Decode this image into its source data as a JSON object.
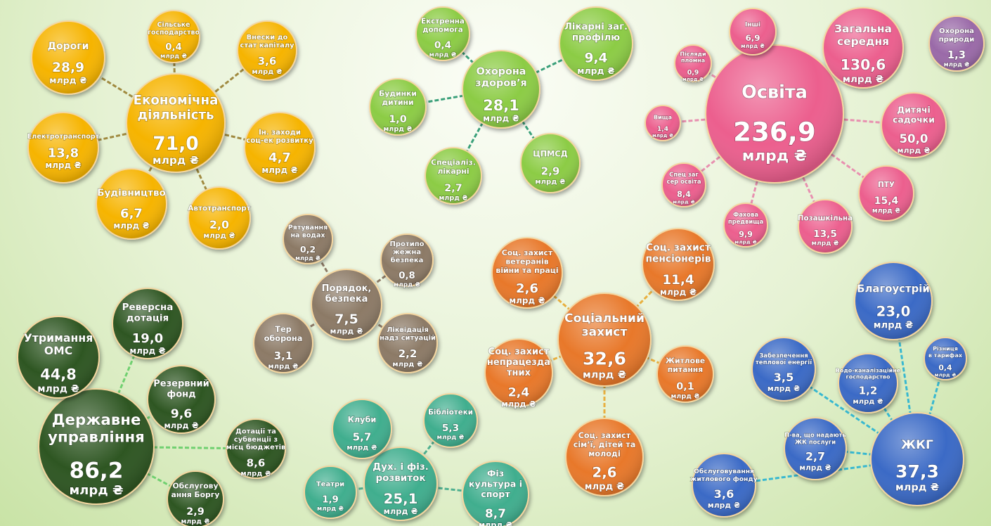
{
  "unit": "млрд ₴",
  "clusters": [
    {
      "id": "economy",
      "color": "#f6b400",
      "edge": "#a08a40",
      "center": {
        "label": "Економічна\nдіяльність",
        "value": "71,0"
      },
      "children": [
        {
          "label": "Дороги",
          "value": "28,9"
        },
        {
          "label": "Сільське\nгосподарство",
          "value": "0,4"
        },
        {
          "label": "Внески до\nстат капіталу",
          "value": "3,6"
        },
        {
          "label": "Ін. заходи\nсоц-ек розвитку",
          "value": "4,7"
        },
        {
          "label": "Автотранспорт",
          "value": "2,0"
        },
        {
          "label": "Будівництво",
          "value": "6,7"
        },
        {
          "label": "Електротранспорт",
          "value": "13,8"
        }
      ]
    },
    {
      "id": "health",
      "color": "#8ccc45",
      "edge": "#3aa07a",
      "center": {
        "label": "Охорона\nздоров’я",
        "value": "28,1"
      },
      "children": [
        {
          "label": "Екстренна\nдопомога",
          "value": "0,4"
        },
        {
          "label": "Лікарні заг.\nпрофілю",
          "value": "9,4"
        },
        {
          "label": "Будинки\nдитини",
          "value": "1,0"
        },
        {
          "label": "Спеціаліз.\nлікарні",
          "value": "2,7"
        },
        {
          "label": "ЦПМСД",
          "value": "2,9"
        }
      ]
    },
    {
      "id": "education",
      "color": "#ec5e8e",
      "edge": "#e890b0",
      "center": {
        "label": "Освіта",
        "value": "236,9"
      },
      "children": [
        {
          "label": "Інші",
          "value": "6,9"
        },
        {
          "label": "Загальна\nсередня",
          "value": "130,6"
        },
        {
          "label": "Післяди\nпломна",
          "value": "0,9"
        },
        {
          "label": "Вища",
          "value": "1,4"
        },
        {
          "label": "Дитячі\nсадочки",
          "value": "50,0"
        },
        {
          "label": "Спец заг\nсер освіта",
          "value": "8,4"
        },
        {
          "label": "ПТУ",
          "value": "15,4"
        },
        {
          "label": "Фахова\nпредвища",
          "value": "9,9"
        },
        {
          "label": "Позашкільна",
          "value": "13,5"
        }
      ]
    },
    {
      "id": "nature",
      "color": "#9a6aa8",
      "edge": "#9a6aa8",
      "center": {
        "label": "Охорона\nприроди",
        "value": "1,3"
      },
      "children": []
    },
    {
      "id": "order",
      "color": "#8c7a66",
      "edge": "#8c7a66",
      "center": {
        "label": "Порядок,\nбезпека",
        "value": "7,5"
      },
      "children": [
        {
          "label": "Рятування\nна водах",
          "value": "0,2"
        },
        {
          "label": "Протипо\nжежна\nбезпека",
          "value": "0,8"
        },
        {
          "label": "Тер\nоборона",
          "value": "3,1"
        },
        {
          "label": "Ліквідація\nнадз ситуацій",
          "value": "2,2"
        }
      ]
    },
    {
      "id": "social",
      "color": "#e8782a",
      "edge": "#e8b040",
      "center": {
        "label": "Соціальний\nзахист",
        "value": "32,6"
      },
      "children": [
        {
          "label": "Соц. захист\nветеранів\nвійни та праці",
          "value": "2,6"
        },
        {
          "label": "Соц. захист\nпенсіонерів",
          "value": "11,4"
        },
        {
          "label": "Соц. захист\nнепрацезда\nтних",
          "value": "2,4"
        },
        {
          "label": "Житлове\nпитання",
          "value": "0,1"
        },
        {
          "label": "Соц. захист\nсім’ї, дітей та\nмолоді",
          "value": "2,6"
        }
      ]
    },
    {
      "id": "housing",
      "color": "#3a6ac6",
      "edge": "#38b8d0",
      "center": {
        "label": "ЖКГ",
        "value": "37,3"
      },
      "children": [
        {
          "label": "Благоустрій",
          "value": "23,0"
        },
        {
          "label": "Забезпечення\nтеплової енергії",
          "value": "3,5"
        },
        {
          "label": "Водо-каналізаційне\nгосподарство",
          "value": "1,2"
        },
        {
          "label": "Різниця\nв тарифах",
          "value": "0,4"
        },
        {
          "label": "П-ва, що надають\nЖК послуги",
          "value": "2,7"
        },
        {
          "label": "Обслуговування\nжитлового фонду",
          "value": "3,6"
        }
      ]
    },
    {
      "id": "government",
      "color": "#2e5620",
      "edge": "#70d070",
      "center": {
        "label": "Державне\nуправління",
        "value": "86,2"
      },
      "children": [
        {
          "label": "Утримання\nОМС",
          "value": "44,8"
        },
        {
          "label": "Реверсна\nдотація",
          "value": "19,0"
        },
        {
          "label": "Резервний\nфонд",
          "value": "9,6"
        },
        {
          "label": "Дотації та\nсубвенції з\nмісц бюджетів",
          "value": "8,6"
        },
        {
          "label": "Обслугову\nання Боргу",
          "value": "2,9"
        }
      ]
    },
    {
      "id": "culture",
      "color": "#3fae8e",
      "edge": "#50b090",
      "center": {
        "label": "Дух. і фіз.\nрозвиток",
        "value": "25,1"
      },
      "children": [
        {
          "label": "Клуби",
          "value": "5,7"
        },
        {
          "label": "Бібліотеки",
          "value": "5,3"
        },
        {
          "label": "Театри",
          "value": "1,9"
        },
        {
          "label": "Фіз\nкультура і\nспорт",
          "value": "8,7"
        }
      ]
    }
  ]
}
